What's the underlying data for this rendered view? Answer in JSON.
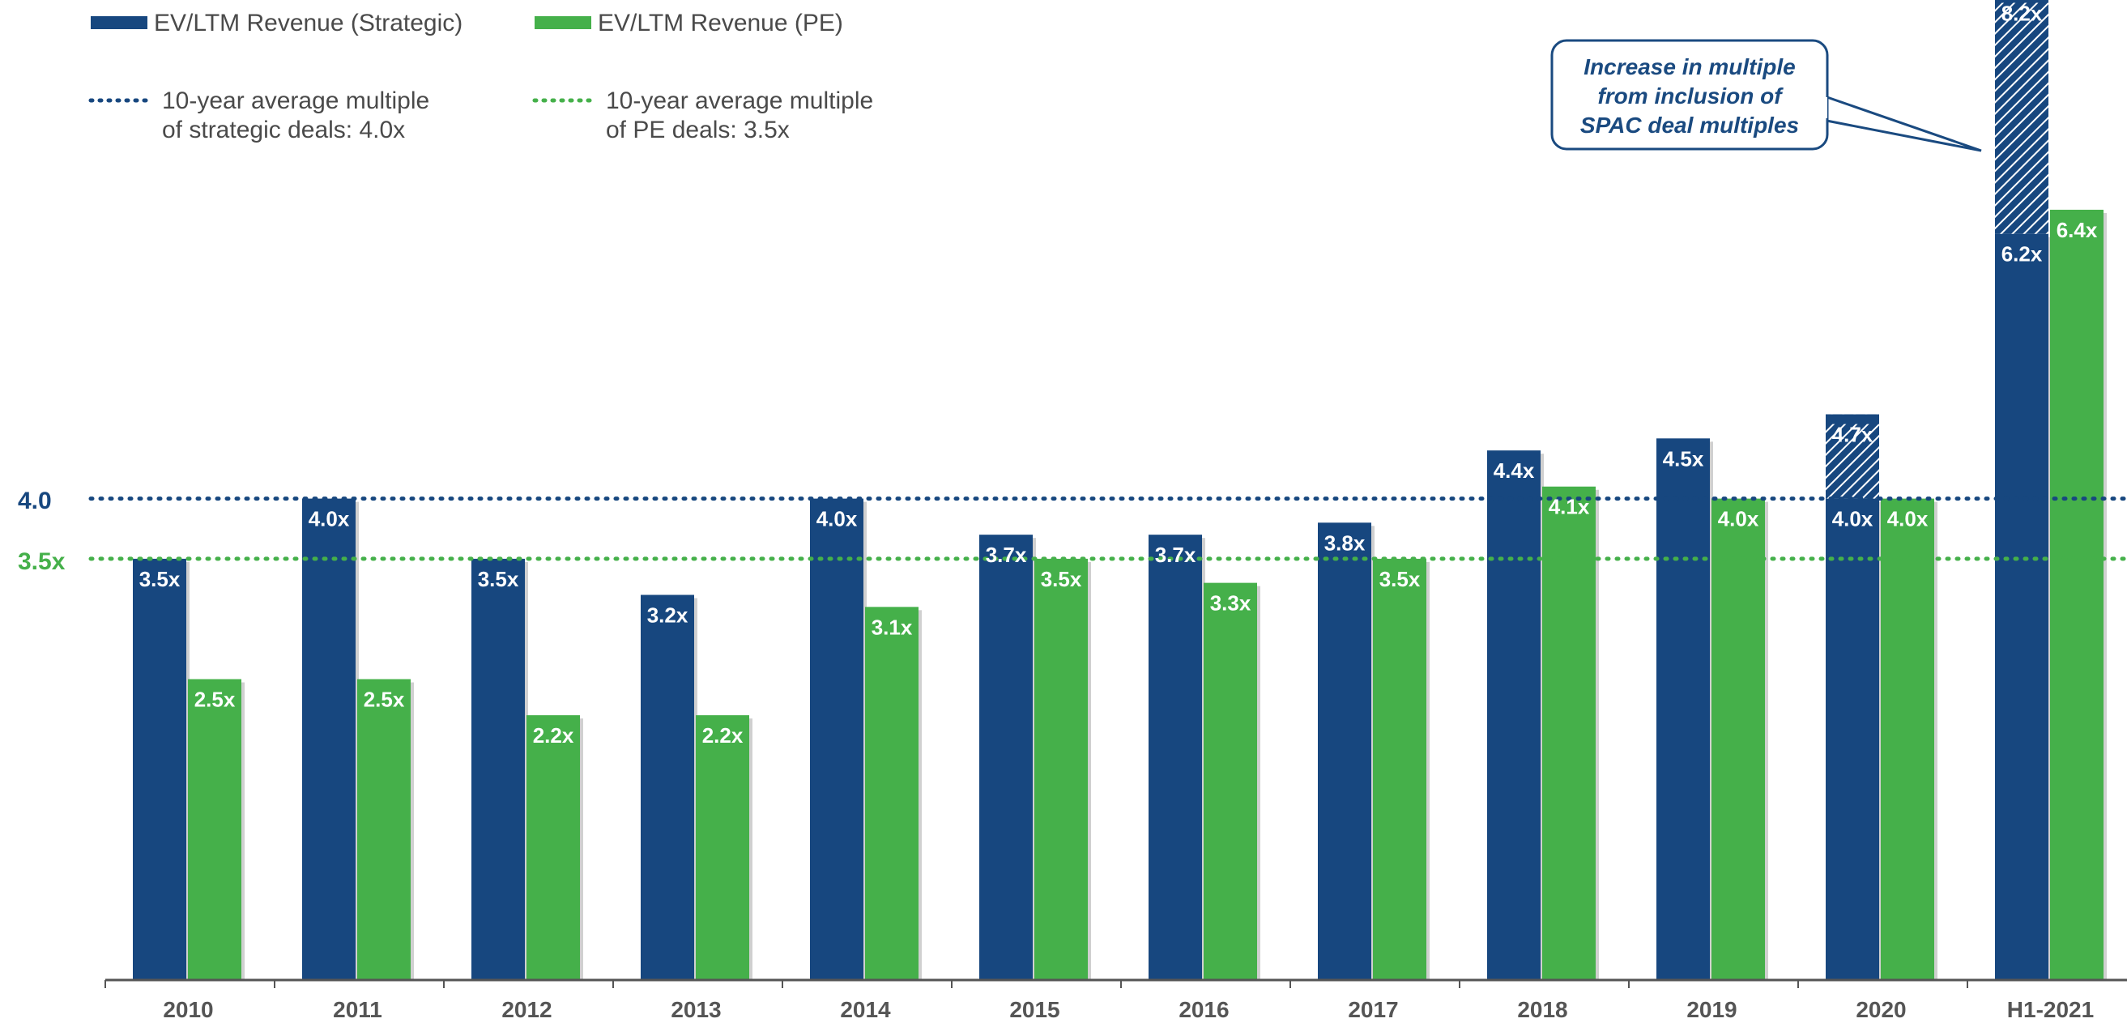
{
  "legend": {
    "strategic": "EV/LTM Revenue (Strategic)",
    "pe": "EV/LTM Revenue (PE)",
    "avg_strategic_line1": "10-year average multiple",
    "avg_strategic_line2": "of strategic deals: 4.0x",
    "avg_pe_line1": "10-year average multiple",
    "avg_pe_line2": "of PE deals: 3.5x"
  },
  "averages": {
    "strategic_label": "4.0",
    "pe_label": "3.5x"
  },
  "callout": {
    "line1": "Increase in multiple",
    "line2": "from inclusion of",
    "line3": "SPAC deal multiples"
  },
  "colors": {
    "strategic": "#17477f",
    "pe": "#45b04a",
    "axis": "#555555"
  },
  "chart_data": {
    "type": "bar",
    "categories": [
      "2010",
      "2011",
      "2012",
      "2013",
      "2014",
      "2015",
      "2016",
      "2017",
      "2018",
      "2019",
      "2020",
      "H1-2021"
    ],
    "series": [
      {
        "name": "EV/LTM Revenue (Strategic)",
        "values": [
          3.5,
          4.0,
          3.5,
          3.2,
          4.0,
          3.7,
          3.7,
          3.8,
          4.4,
          4.5,
          4.0,
          6.2
        ],
        "labels": [
          "3.5x",
          "4.0x",
          "3.5x",
          "3.2x",
          "4.0x",
          "3.7x",
          "3.7x",
          "3.8x",
          "4.4x",
          "4.5x",
          "4.0x",
          "6.2x"
        ]
      },
      {
        "name": "EV/LTM Revenue (PE)",
        "values": [
          2.5,
          2.5,
          2.2,
          2.2,
          3.1,
          3.5,
          3.3,
          3.5,
          4.1,
          4.0,
          4.0,
          6.4
        ],
        "labels": [
          "2.5x",
          "2.5x",
          "2.2x",
          "2.2x",
          "3.1x",
          "3.5x",
          "3.3x",
          "3.5x",
          "4.1x",
          "4.0x",
          "4.0x",
          "6.4x"
        ]
      }
    ],
    "spac_increment": {
      "categories": [
        "2020",
        "H1-2021"
      ],
      "totals": [
        4.7,
        8.2
      ],
      "labels": [
        "4.7x",
        "8.2x"
      ]
    },
    "reference_lines": [
      {
        "series": "EV/LTM Revenue (Strategic)",
        "value": 4.0
      },
      {
        "series": "EV/LTM Revenue (PE)",
        "value": 3.5
      }
    ],
    "ylim": [
      0,
      8.2
    ],
    "grid": false,
    "legend_position": "top-left"
  }
}
